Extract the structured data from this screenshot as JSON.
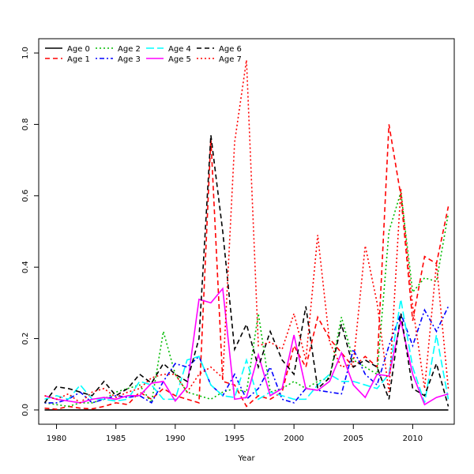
{
  "chart_data": {
    "type": "line",
    "title": "",
    "xlabel": "Year",
    "ylabel": "",
    "xlim": [
      1978.5,
      2013.5
    ],
    "ylim": [
      -0.04,
      1.04
    ],
    "xticks": [
      1980,
      1985,
      1990,
      1995,
      2000,
      2005,
      2010
    ],
    "yticks": [
      0.0,
      0.2,
      0.4,
      0.6,
      0.8,
      1.0
    ],
    "xtick_labels": [
      "1980",
      "1985",
      "1990",
      "1995",
      "2000",
      "2005",
      "2010"
    ],
    "ytick_labels": [
      "0.0",
      "0.2",
      "0.4",
      "0.6",
      "0.8",
      "1.0"
    ],
    "grid": false,
    "legend_position": "top-left",
    "x": [
      1979,
      1980,
      1981,
      1982,
      1983,
      1984,
      1985,
      1986,
      1987,
      1988,
      1989,
      1990,
      1991,
      1992,
      1993,
      1994,
      1995,
      1996,
      1997,
      1998,
      1999,
      2000,
      2001,
      2002,
      2003,
      2004,
      2005,
      2006,
      2007,
      2008,
      2009,
      2010,
      2011,
      2012,
      2013
    ],
    "series": [
      {
        "name": "Age 0",
        "color": "#000000",
        "dash": "solid",
        "values": [
          0,
          0,
          0,
          0,
          0,
          0,
          0,
          0,
          0,
          0,
          0,
          0,
          0,
          0,
          0,
          0,
          0,
          0,
          0,
          0,
          0,
          0,
          0,
          0,
          0,
          0,
          0,
          0,
          0,
          0,
          0,
          0,
          0,
          0,
          0
        ]
      },
      {
        "name": "Age 1",
        "color": "#ff0000",
        "dash": "dashed",
        "values": [
          0.005,
          0.002,
          0.01,
          0.005,
          0.003,
          0.01,
          0.02,
          0.015,
          0.05,
          0.03,
          0.06,
          0.04,
          0.03,
          0.02,
          0.76,
          0.08,
          0.07,
          0.01,
          0.04,
          0.03,
          0.05,
          0.18,
          0.12,
          0.26,
          0.2,
          0.16,
          0.12,
          0.15,
          0.12,
          0.8,
          0.6,
          0.25,
          0.43,
          0.41,
          0.57
        ]
      },
      {
        "name": "Age 2",
        "color": "#00bb00",
        "dash": "dotted",
        "values": [
          0.02,
          0.015,
          0.01,
          0.02,
          0.02,
          0.03,
          0.05,
          0.06,
          0.07,
          0.02,
          0.22,
          0.1,
          0.05,
          0.04,
          0.03,
          0.05,
          0.06,
          0.05,
          0.27,
          0.05,
          0.06,
          0.08,
          0.06,
          0.08,
          0.09,
          0.26,
          0.14,
          0.12,
          0.1,
          0.5,
          0.61,
          0.33,
          0.37,
          0.36,
          0.55
        ]
      },
      {
        "name": "Age 3",
        "color": "#0000ff",
        "dash": "dotdash",
        "values": [
          0.02,
          0.02,
          0.03,
          0.05,
          0.02,
          0.03,
          0.04,
          0.035,
          0.04,
          0.02,
          0.08,
          0.13,
          0.12,
          0.15,
          0.07,
          0.04,
          0.1,
          0.03,
          0.06,
          0.12,
          0.03,
          0.02,
          0.06,
          0.055,
          0.05,
          0.045,
          0.17,
          0.1,
          0.07,
          0.18,
          0.27,
          0.18,
          0.28,
          0.22,
          0.29
        ]
      },
      {
        "name": "Age 4",
        "color": "#00ffff",
        "dash": "longdash",
        "values": [
          0.03,
          0.04,
          0.03,
          0.07,
          0.03,
          0.03,
          0.025,
          0.03,
          0.08,
          0.07,
          0.03,
          0.03,
          0.14,
          0.15,
          0.07,
          0.04,
          0.035,
          0.14,
          0.03,
          0.05,
          0.04,
          0.03,
          0.03,
          0.07,
          0.1,
          0.08,
          0.08,
          0.07,
          0.06,
          0.1,
          0.31,
          0.12,
          0.02,
          0.21,
          0.03
        ]
      },
      {
        "name": "Age 5",
        "color": "#ff00ff",
        "dash": "solid",
        "values": [
          0.04,
          0.03,
          0.025,
          0.02,
          0.03,
          0.035,
          0.03,
          0.04,
          0.04,
          0.075,
          0.08,
          0.025,
          0.065,
          0.31,
          0.3,
          0.34,
          0.03,
          0.035,
          0.155,
          0.04,
          0.06,
          0.21,
          0.06,
          0.055,
          0.08,
          0.16,
          0.07,
          0.035,
          0.1,
          0.095,
          0.25,
          0.1,
          0.015,
          0.035,
          0.045
        ]
      },
      {
        "name": "Age 6",
        "color": "#000000",
        "dash": "dashed",
        "values": [
          0.02,
          0.065,
          0.06,
          0.05,
          0.04,
          0.08,
          0.04,
          0.06,
          0.1,
          0.075,
          0.13,
          0.1,
          0.08,
          0.2,
          0.77,
          0.5,
          0.17,
          0.24,
          0.12,
          0.22,
          0.14,
          0.1,
          0.29,
          0.06,
          0.09,
          0.24,
          0.12,
          0.14,
          0.12,
          0.03,
          0.27,
          0.06,
          0.04,
          0.13,
          0.01
        ]
      },
      {
        "name": "Age 7",
        "color": "#ff0000",
        "dash": "dotted",
        "values": [
          0.04,
          0.03,
          0.045,
          0.02,
          0.05,
          0.06,
          0.035,
          0.05,
          0.06,
          0.09,
          0.1,
          0.1,
          0.05,
          0.1,
          0.12,
          0.09,
          0.75,
          0.98,
          0.18,
          0.19,
          0.17,
          0.27,
          0.14,
          0.49,
          0.19,
          0.12,
          0.13,
          0.46,
          0.3,
          0.05,
          0.62,
          0.29,
          0.06,
          0.41,
          0.06
        ]
      }
    ]
  }
}
